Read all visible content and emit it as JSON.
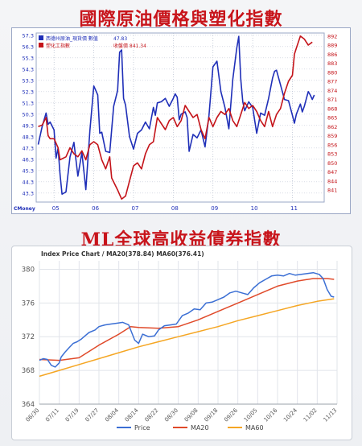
{
  "headings": {
    "top": "國際原油價格與塑化指數",
    "bottom": "ML全球高收益債券指數"
  },
  "colors": {
    "heading": "#c8141b",
    "oil_blue": "#1f2fb8",
    "plastic_red": "#c4141a",
    "price": "#3b6fd4",
    "ma20": "#e04a2a",
    "ma60": "#f5a623"
  },
  "chart_data": [
    {
      "type": "line",
      "title": "",
      "legend": [
        {
          "label": "西德州原油_現貨價 數值",
          "value": "47.83"
        },
        {
          "label": "塑化工指數",
          "value": "收盤價 841.34"
        }
      ],
      "source": "CMoney",
      "x_ticks": [
        "05",
        "06",
        "07",
        "08",
        "09",
        "10",
        "11"
      ],
      "left_axis": {
        "ticks": [
          "57.3",
          "56.3",
          "55.3",
          "54.3",
          "53.3",
          "52.3",
          "51.3",
          "50.3",
          "49.3",
          "48.3",
          "47.3",
          "46.3",
          "45.3",
          "44.3",
          "43.3"
        ],
        "ylim": [
          42.5,
          57.5
        ]
      },
      "right_axis": {
        "ticks": [
          "892",
          "889",
          "886",
          "883",
          "880",
          "877",
          "874",
          "871",
          "868",
          "865",
          "862",
          "859",
          "856",
          "853",
          "850",
          "847",
          "844",
          "841"
        ],
        "ylim": [
          837,
          893
        ]
      },
      "x_range": [
        4.55,
        11.8
      ],
      "series": [
        {
          "name": "西德州原油_現貨價",
          "axis": "left",
          "points": [
            [
              4.6,
              47.6
            ],
            [
              4.7,
              49.2
            ],
            [
              4.8,
              50.4
            ],
            [
              4.85,
              49.4
            ],
            [
              4.9,
              49.6
            ],
            [
              5.0,
              48.9
            ],
            [
              5.05,
              46.4
            ],
            [
              5.1,
              47.3
            ],
            [
              5.15,
              45.0
            ],
            [
              5.2,
              43.2
            ],
            [
              5.3,
              43.4
            ],
            [
              5.4,
              46.5
            ],
            [
              5.5,
              47.8
            ],
            [
              5.6,
              44.8
            ],
            [
              5.7,
              46.9
            ],
            [
              5.8,
              43.6
            ],
            [
              5.9,
              48.8
            ],
            [
              6.0,
              52.8
            ],
            [
              6.05,
              52.4
            ],
            [
              6.1,
              52.0
            ],
            [
              6.15,
              48.6
            ],
            [
              6.2,
              48.7
            ],
            [
              6.3,
              47.0
            ],
            [
              6.4,
              46.9
            ],
            [
              6.5,
              51.0
            ],
            [
              6.6,
              52.4
            ],
            [
              6.65,
              55.8
            ],
            [
              6.7,
              56.0
            ],
            [
              6.75,
              51.7
            ],
            [
              6.8,
              51.1
            ],
            [
              6.9,
              48.3
            ],
            [
              7.0,
              47.2
            ],
            [
              7.1,
              48.6
            ],
            [
              7.2,
              48.9
            ],
            [
              7.3,
              49.6
            ],
            [
              7.4,
              49.0
            ],
            [
              7.5,
              50.9
            ],
            [
              7.55,
              50.2
            ],
            [
              7.6,
              51.3
            ],
            [
              7.7,
              51.4
            ],
            [
              7.8,
              51.7
            ],
            [
              7.9,
              51.0
            ],
            [
              8.0,
              51.7
            ],
            [
              8.05,
              52.1
            ],
            [
              8.1,
              51.8
            ],
            [
              8.15,
              49.8
            ],
            [
              8.2,
              50.3
            ],
            [
              8.3,
              50.5
            ],
            [
              8.35,
              50.0
            ],
            [
              8.4,
              47.0
            ],
            [
              8.5,
              48.5
            ],
            [
              8.6,
              48.2
            ],
            [
              8.7,
              48.9
            ],
            [
              8.8,
              47.4
            ],
            [
              8.9,
              50.2
            ],
            [
              9.0,
              54.5
            ],
            [
              9.1,
              55.0
            ],
            [
              9.2,
              52.3
            ],
            [
              9.3,
              50.9
            ],
            [
              9.4,
              49.0
            ],
            [
              9.5,
              53.4
            ],
            [
              9.6,
              56.2
            ],
            [
              9.65,
              57.2
            ],
            [
              9.7,
              53.4
            ],
            [
              9.75,
              51.4
            ],
            [
              9.8,
              50.6
            ],
            [
              9.9,
              51.4
            ],
            [
              10.0,
              50.9
            ],
            [
              10.1,
              48.6
            ],
            [
              10.2,
              50.4
            ],
            [
              10.3,
              50.2
            ],
            [
              10.4,
              51.7
            ],
            [
              10.5,
              53.5
            ],
            [
              10.55,
              54.1
            ],
            [
              10.6,
              54.2
            ],
            [
              10.7,
              52.9
            ],
            [
              10.8,
              51.6
            ],
            [
              10.9,
              51.5
            ],
            [
              11.0,
              50.2
            ],
            [
              11.05,
              49.5
            ],
            [
              11.1,
              50.3
            ],
            [
              11.2,
              51.2
            ],
            [
              11.25,
              50.5
            ],
            [
              11.3,
              51.0
            ],
            [
              11.4,
              52.3
            ],
            [
              11.45,
              52.0
            ],
            [
              11.5,
              51.6
            ],
            [
              11.55,
              52.0
            ]
          ]
        },
        {
          "name": "塑化工指數",
          "axis": "right",
          "points": [
            [
              4.6,
              862
            ],
            [
              4.7,
              862.5
            ],
            [
              4.8,
              865
            ],
            [
              4.85,
              859
            ],
            [
              4.9,
              858
            ],
            [
              5.0,
              858
            ],
            [
              5.1,
              855
            ],
            [
              5.15,
              851
            ],
            [
              5.3,
              852
            ],
            [
              5.4,
              855
            ],
            [
              5.5,
              853
            ],
            [
              5.6,
              852
            ],
            [
              5.7,
              854
            ],
            [
              5.8,
              851
            ],
            [
              5.9,
              856
            ],
            [
              6.0,
              857
            ],
            [
              6.1,
              856
            ],
            [
              6.2,
              851
            ],
            [
              6.3,
              848
            ],
            [
              6.4,
              852
            ],
            [
              6.45,
              845
            ],
            [
              6.6,
              841
            ],
            [
              6.7,
              838
            ],
            [
              6.8,
              839
            ],
            [
              6.9,
              844
            ],
            [
              7.0,
              849
            ],
            [
              7.1,
              850
            ],
            [
              7.2,
              848
            ],
            [
              7.3,
              853
            ],
            [
              7.4,
              856
            ],
            [
              7.5,
              857
            ],
            [
              7.6,
              865
            ],
            [
              7.7,
              863
            ],
            [
              7.8,
              861
            ],
            [
              7.9,
              864
            ],
            [
              8.0,
              865
            ],
            [
              8.1,
              862
            ],
            [
              8.2,
              864
            ],
            [
              8.3,
              869
            ],
            [
              8.4,
              867
            ],
            [
              8.5,
              865
            ],
            [
              8.6,
              866
            ],
            [
              8.7,
              861
            ],
            [
              8.8,
              858
            ],
            [
              8.9,
              865
            ],
            [
              9.0,
              862
            ],
            [
              9.1,
              865
            ],
            [
              9.2,
              867
            ],
            [
              9.3,
              866
            ],
            [
              9.4,
              868
            ],
            [
              9.5,
              864
            ],
            [
              9.6,
              862
            ],
            [
              9.7,
              866
            ],
            [
              9.8,
              870
            ],
            [
              9.9,
              868
            ],
            [
              10.0,
              869
            ],
            [
              10.1,
              867
            ],
            [
              10.2,
              864
            ],
            [
              10.3,
              862
            ],
            [
              10.4,
              867
            ],
            [
              10.5,
              862
            ],
            [
              10.6,
              866
            ],
            [
              10.7,
              868
            ],
            [
              10.8,
              873
            ],
            [
              10.9,
              877
            ],
            [
              11.0,
              879
            ],
            [
              11.05,
              886
            ],
            [
              11.1,
              888
            ],
            [
              11.15,
              890
            ],
            [
              11.2,
              892
            ],
            [
              11.3,
              891
            ],
            [
              11.4,
              889
            ],
            [
              11.5,
              890
            ]
          ]
        }
      ]
    },
    {
      "type": "line",
      "title": "Index Price Chart / MA20(378.84) MA60(376.41)",
      "y_ticks": [
        364,
        368,
        372,
        376,
        380
      ],
      "ylim": [
        364,
        381
      ],
      "grid": true,
      "legend_position": "bottom",
      "categories": [
        "06/30",
        "07/11",
        "07/19",
        "07/27",
        "08/04",
        "08/14",
        "08/22",
        "08/30",
        "09/08",
        "09/18",
        "09/26",
        "10/05",
        "10/16",
        "10/24",
        "11/02",
        "11/13"
      ],
      "x_index_range": [
        0,
        15
      ],
      "series": [
        {
          "name": "Price",
          "points": [
            [
              0,
              369.2
            ],
            [
              0.2,
              369.4
            ],
            [
              0.4,
              369.3
            ],
            [
              0.6,
              368.6
            ],
            [
              0.8,
              368.4
            ],
            [
              1.0,
              368.9
            ],
            [
              1.1,
              369.6
            ],
            [
              1.3,
              370.2
            ],
            [
              1.5,
              370.7
            ],
            [
              1.7,
              371.2
            ],
            [
              1.9,
              371.4
            ],
            [
              2.1,
              371.7
            ],
            [
              2.3,
              372.1
            ],
            [
              2.5,
              372.5
            ],
            [
              2.8,
              372.8
            ],
            [
              3.0,
              373.2
            ],
            [
              3.3,
              373.4
            ],
            [
              3.6,
              373.5
            ],
            [
              3.9,
              373.6
            ],
            [
              4.2,
              373.7
            ],
            [
              4.5,
              373.4
            ],
            [
              4.8,
              371.6
            ],
            [
              5.0,
              371.2
            ],
            [
              5.2,
              372.3
            ],
            [
              5.5,
              372.0
            ],
            [
              5.8,
              372.1
            ],
            [
              6.0,
              372.8
            ],
            [
              6.3,
              373.3
            ],
            [
              6.6,
              373.4
            ],
            [
              6.9,
              373.5
            ],
            [
              7.2,
              374.5
            ],
            [
              7.5,
              374.8
            ],
            [
              7.8,
              375.3
            ],
            [
              8.1,
              375.2
            ],
            [
              8.4,
              376.0
            ],
            [
              8.7,
              376.1
            ],
            [
              9.0,
              376.4
            ],
            [
              9.3,
              376.7
            ],
            [
              9.6,
              377.2
            ],
            [
              9.9,
              377.4
            ],
            [
              10.2,
              377.2
            ],
            [
              10.5,
              377.0
            ],
            [
              10.8,
              377.8
            ],
            [
              11.1,
              378.4
            ],
            [
              11.4,
              378.8
            ],
            [
              11.7,
              379.2
            ],
            [
              12.0,
              379.3
            ],
            [
              12.3,
              379.2
            ],
            [
              12.6,
              379.5
            ],
            [
              12.9,
              379.3
            ],
            [
              13.2,
              379.4
            ],
            [
              13.5,
              379.5
            ],
            [
              13.8,
              379.6
            ],
            [
              14.1,
              379.4
            ],
            [
              14.3,
              378.9
            ],
            [
              14.5,
              377.6
            ],
            [
              14.7,
              376.8
            ],
            [
              14.85,
              376.7
            ]
          ]
        },
        {
          "name": "MA20",
          "points": [
            [
              0,
              369.3
            ],
            [
              1,
              369.2
            ],
            [
              2,
              369.5
            ],
            [
              3,
              371.0
            ],
            [
              4,
              372.3
            ],
            [
              4.6,
              373.2
            ],
            [
              5,
              373.1
            ],
            [
              6,
              373.0
            ],
            [
              7,
              373.2
            ],
            [
              8,
              374.0
            ],
            [
              9,
              375.0
            ],
            [
              10,
              376.0
            ],
            [
              11,
              377.0
            ],
            [
              12,
              378.0
            ],
            [
              13,
              378.6
            ],
            [
              13.8,
              378.9
            ],
            [
              14.5,
              378.9
            ],
            [
              14.85,
              378.8
            ]
          ]
        },
        {
          "name": "MA60",
          "points": [
            [
              0,
              367.3
            ],
            [
              1,
              368.0
            ],
            [
              2,
              368.7
            ],
            [
              3,
              369.4
            ],
            [
              4,
              370.1
            ],
            [
              5,
              370.8
            ],
            [
              6,
              371.4
            ],
            [
              7,
              372.0
            ],
            [
              8,
              372.6
            ],
            [
              9,
              373.2
            ],
            [
              10,
              373.9
            ],
            [
              11,
              374.5
            ],
            [
              12,
              375.1
            ],
            [
              13,
              375.7
            ],
            [
              14,
              376.2
            ],
            [
              14.85,
              376.5
            ]
          ]
        }
      ]
    }
  ]
}
